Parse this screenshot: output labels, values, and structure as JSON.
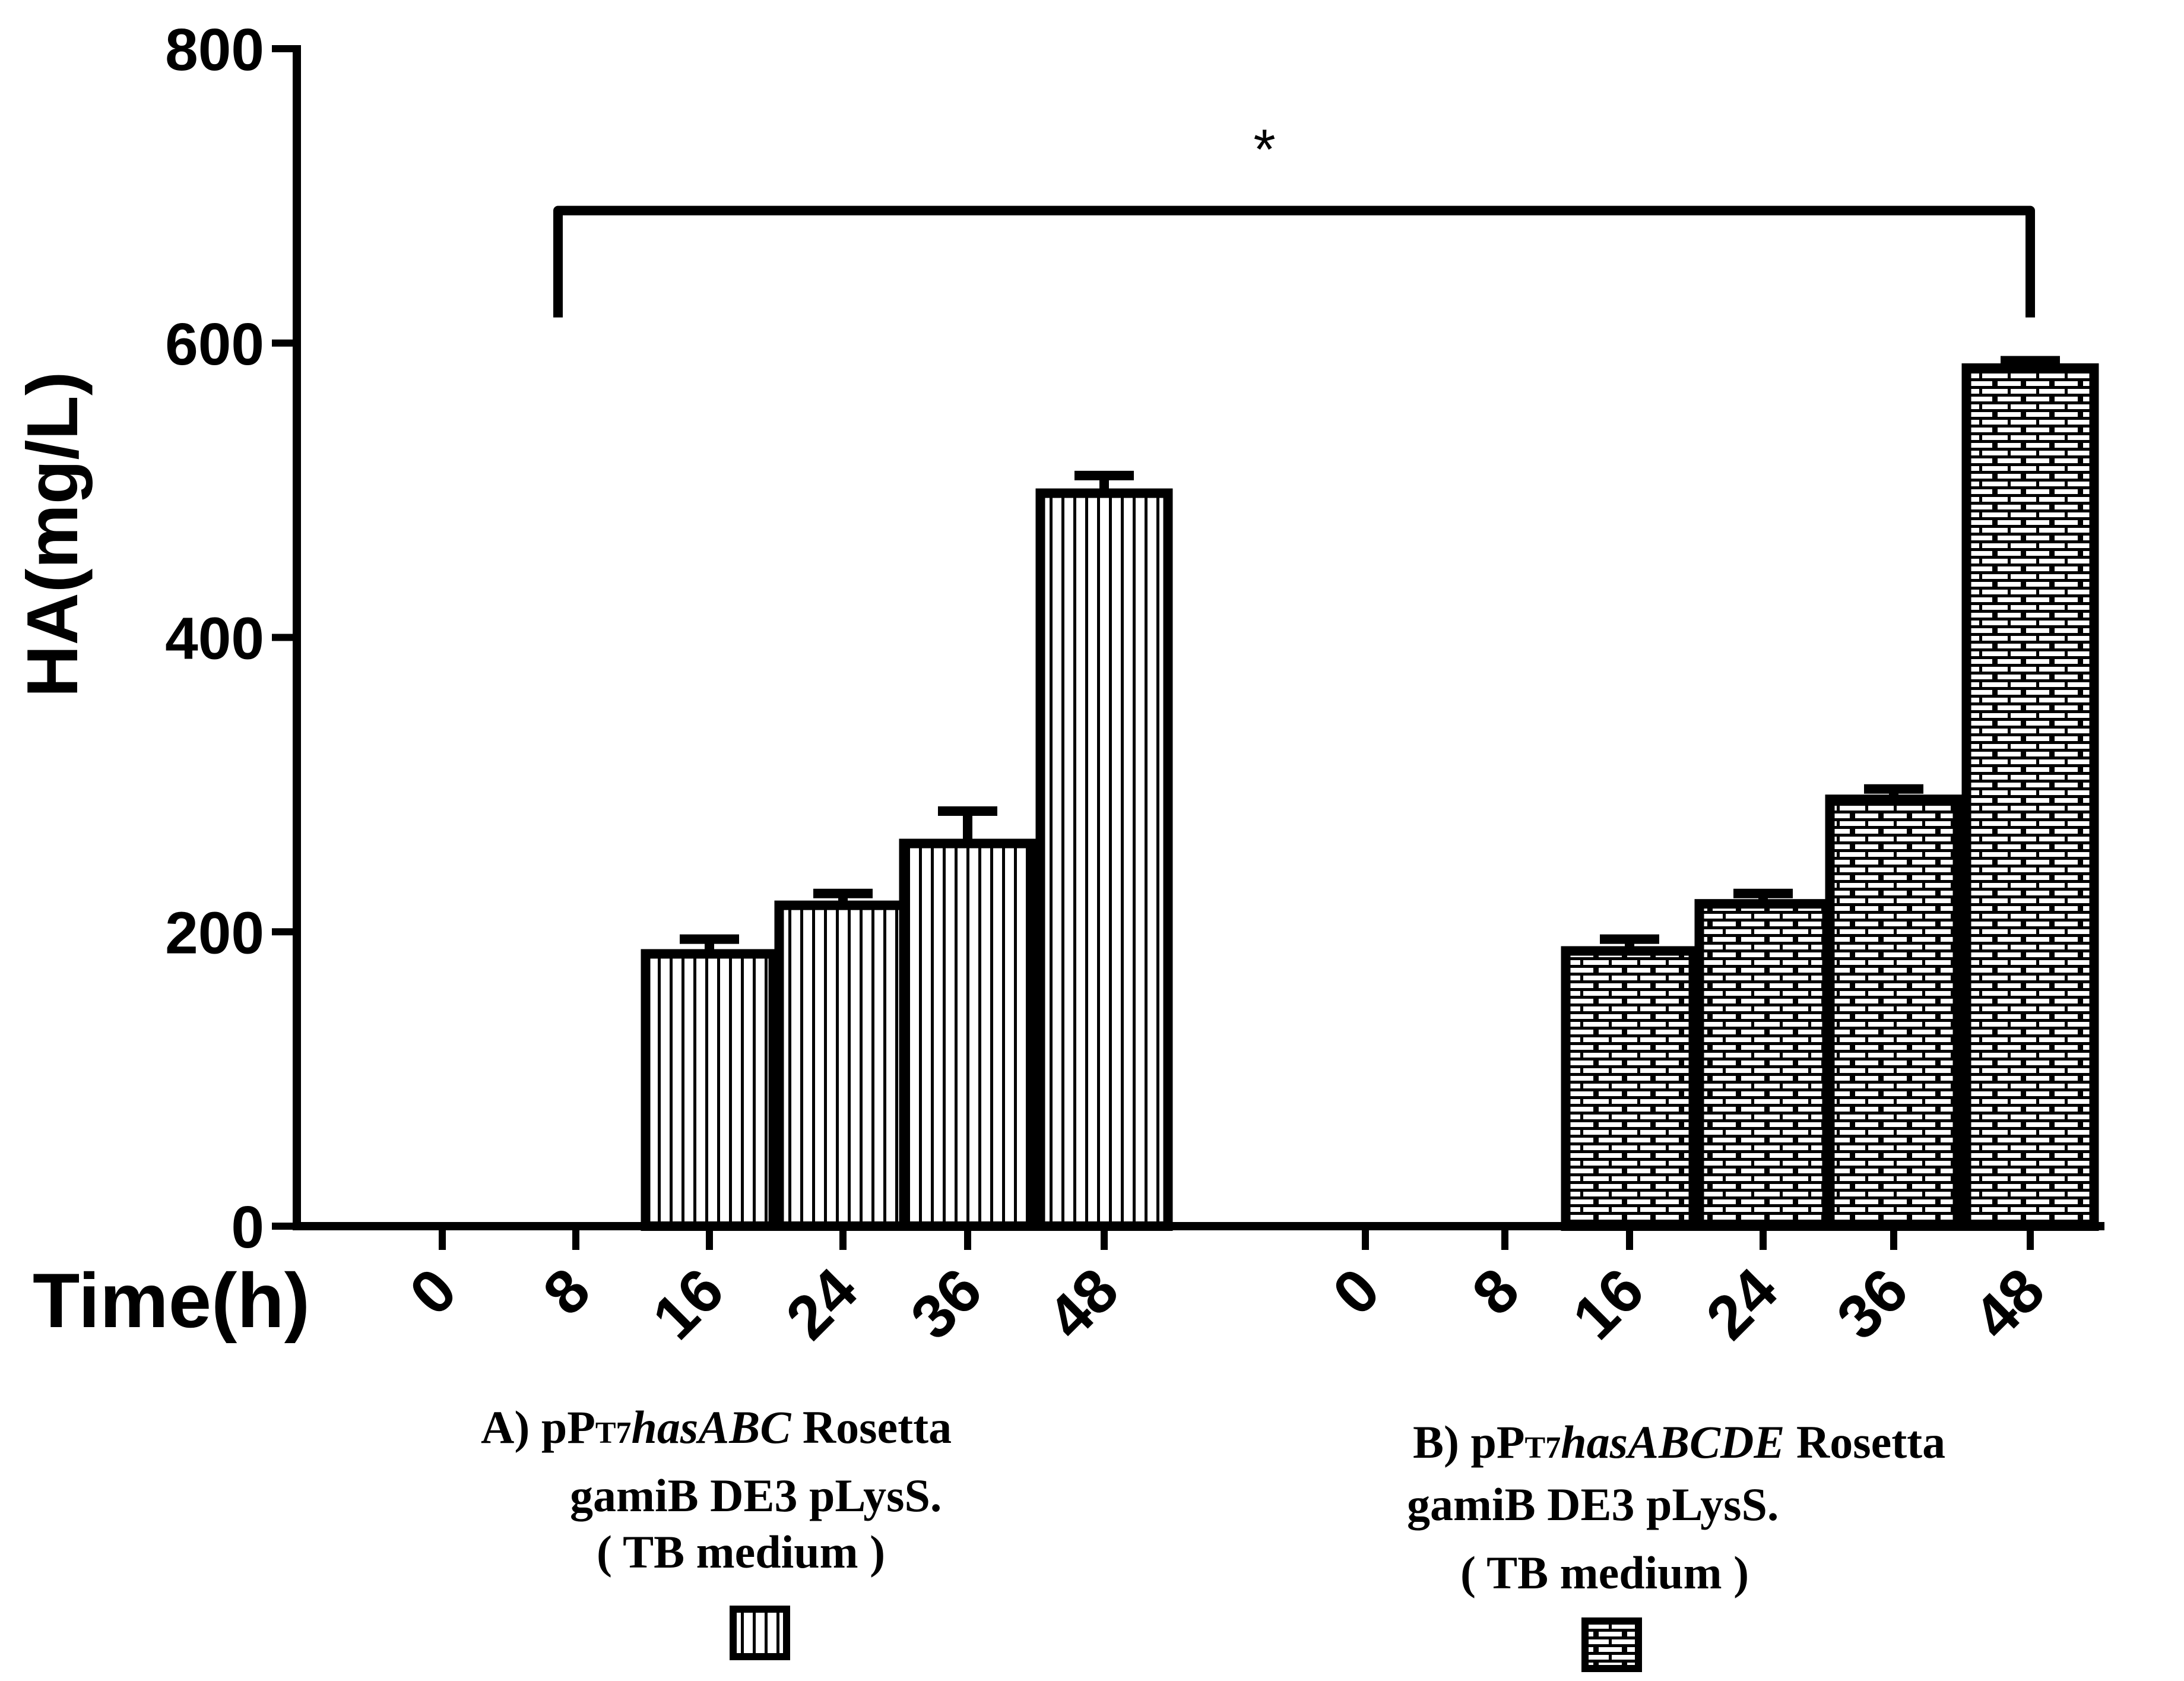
{
  "chart_data": {
    "type": "bar",
    "ylabel": "HA(mg/L)",
    "xlabel": "Time(h)",
    "ylim": [
      0,
      800
    ],
    "yticks": [
      "0",
      "200",
      "400",
      "600",
      "800"
    ],
    "categories": [
      "0",
      "8",
      "16",
      "24",
      "36",
      "48"
    ],
    "series": [
      {
        "name": "pPT7hasABC",
        "pattern": "vertical-lines",
        "values": [
          0,
          0,
          185,
          218,
          260,
          498
        ],
        "errors": [
          0,
          0,
          10,
          8,
          22,
          12
        ],
        "legend": {
          "prefix": "A)",
          "plasmid_base": "pP",
          "plasmid_sub": "T7",
          "plasmid_gene": "hasABC",
          "line1_rest": "Rosetta",
          "line2": "gamiB DE3 pLysS.",
          "line3": "( TB medium )"
        }
      },
      {
        "name": "pPT7hasABCDE",
        "pattern": "bricks",
        "values": [
          0,
          0,
          187,
          219,
          290,
          583
        ],
        "errors": [
          0,
          0,
          8,
          7,
          7,
          5
        ],
        "legend": {
          "prefix": "B)",
          "plasmid_base": "pP",
          "plasmid_sub": "T7",
          "plasmid_gene": "hasABCDE",
          "line1_rest": "Rosetta",
          "line2": "gamiB DE3 pLysS.",
          "line3": "( TB medium )"
        }
      }
    ],
    "annotation": {
      "text": "*",
      "bracket_value": 690,
      "from": "A 8h",
      "to": "B 48h"
    }
  }
}
